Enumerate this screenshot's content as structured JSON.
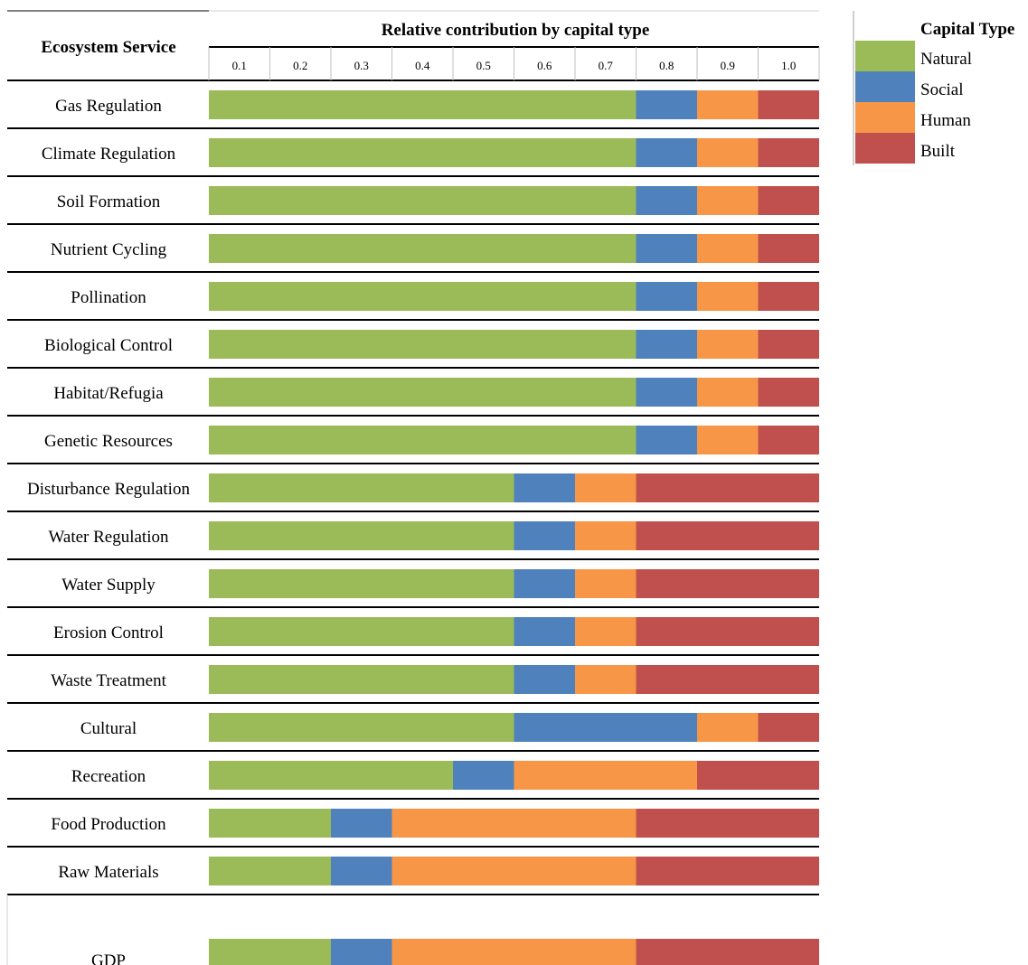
{
  "chart_data": {
    "type": "bar",
    "orientation": "horizontal",
    "stacked": true,
    "title": "Relative contribution by capital type",
    "row_header": "Ecosystem Service",
    "ticks": [
      "0.1",
      "0.2",
      "0.3",
      "0.4",
      "0.5",
      "0.6",
      "0.7",
      "0.8",
      "0.9",
      "1.0"
    ],
    "xlim": [
      0,
      1
    ],
    "legend": {
      "title": "Capital Type",
      "position": "top-right",
      "items": [
        {
          "name": "Natural",
          "color": "#9BBB59"
        },
        {
          "name": "Social",
          "color": "#4F81BD"
        },
        {
          "name": "Human",
          "color": "#F79646"
        },
        {
          "name": "Built",
          "color": "#C0504D"
        }
      ]
    },
    "categories": [
      "Gas Regulation",
      "Climate Regulation",
      "Soil Formation",
      "Nutrient Cycling",
      "Pollination",
      "Biological Control",
      "Habitat/Refugia",
      "Genetic Resources",
      "Disturbance Regulation",
      "Water Regulation",
      "Water Supply",
      "Erosion Control",
      "Waste Treatment",
      "Cultural",
      "Recreation",
      "Food Production",
      "Raw Materials",
      "GDP"
    ],
    "series": [
      {
        "name": "Natural",
        "values": [
          0.7,
          0.7,
          0.7,
          0.7,
          0.7,
          0.7,
          0.7,
          0.7,
          0.5,
          0.5,
          0.5,
          0.5,
          0.5,
          0.5,
          0.4,
          0.2,
          0.2,
          0.2
        ]
      },
      {
        "name": "Social",
        "values": [
          0.1,
          0.1,
          0.1,
          0.1,
          0.1,
          0.1,
          0.1,
          0.1,
          0.1,
          0.1,
          0.1,
          0.1,
          0.1,
          0.3,
          0.1,
          0.1,
          0.1,
          0.1
        ]
      },
      {
        "name": "Human",
        "values": [
          0.1,
          0.1,
          0.1,
          0.1,
          0.1,
          0.1,
          0.1,
          0.1,
          0.1,
          0.1,
          0.1,
          0.1,
          0.1,
          0.1,
          0.3,
          0.4,
          0.4,
          0.4
        ]
      },
      {
        "name": "Built",
        "values": [
          0.1,
          0.1,
          0.1,
          0.1,
          0.1,
          0.1,
          0.1,
          0.1,
          0.3,
          0.3,
          0.3,
          0.3,
          0.3,
          0.1,
          0.2,
          0.3,
          0.3,
          0.3
        ]
      }
    ]
  }
}
